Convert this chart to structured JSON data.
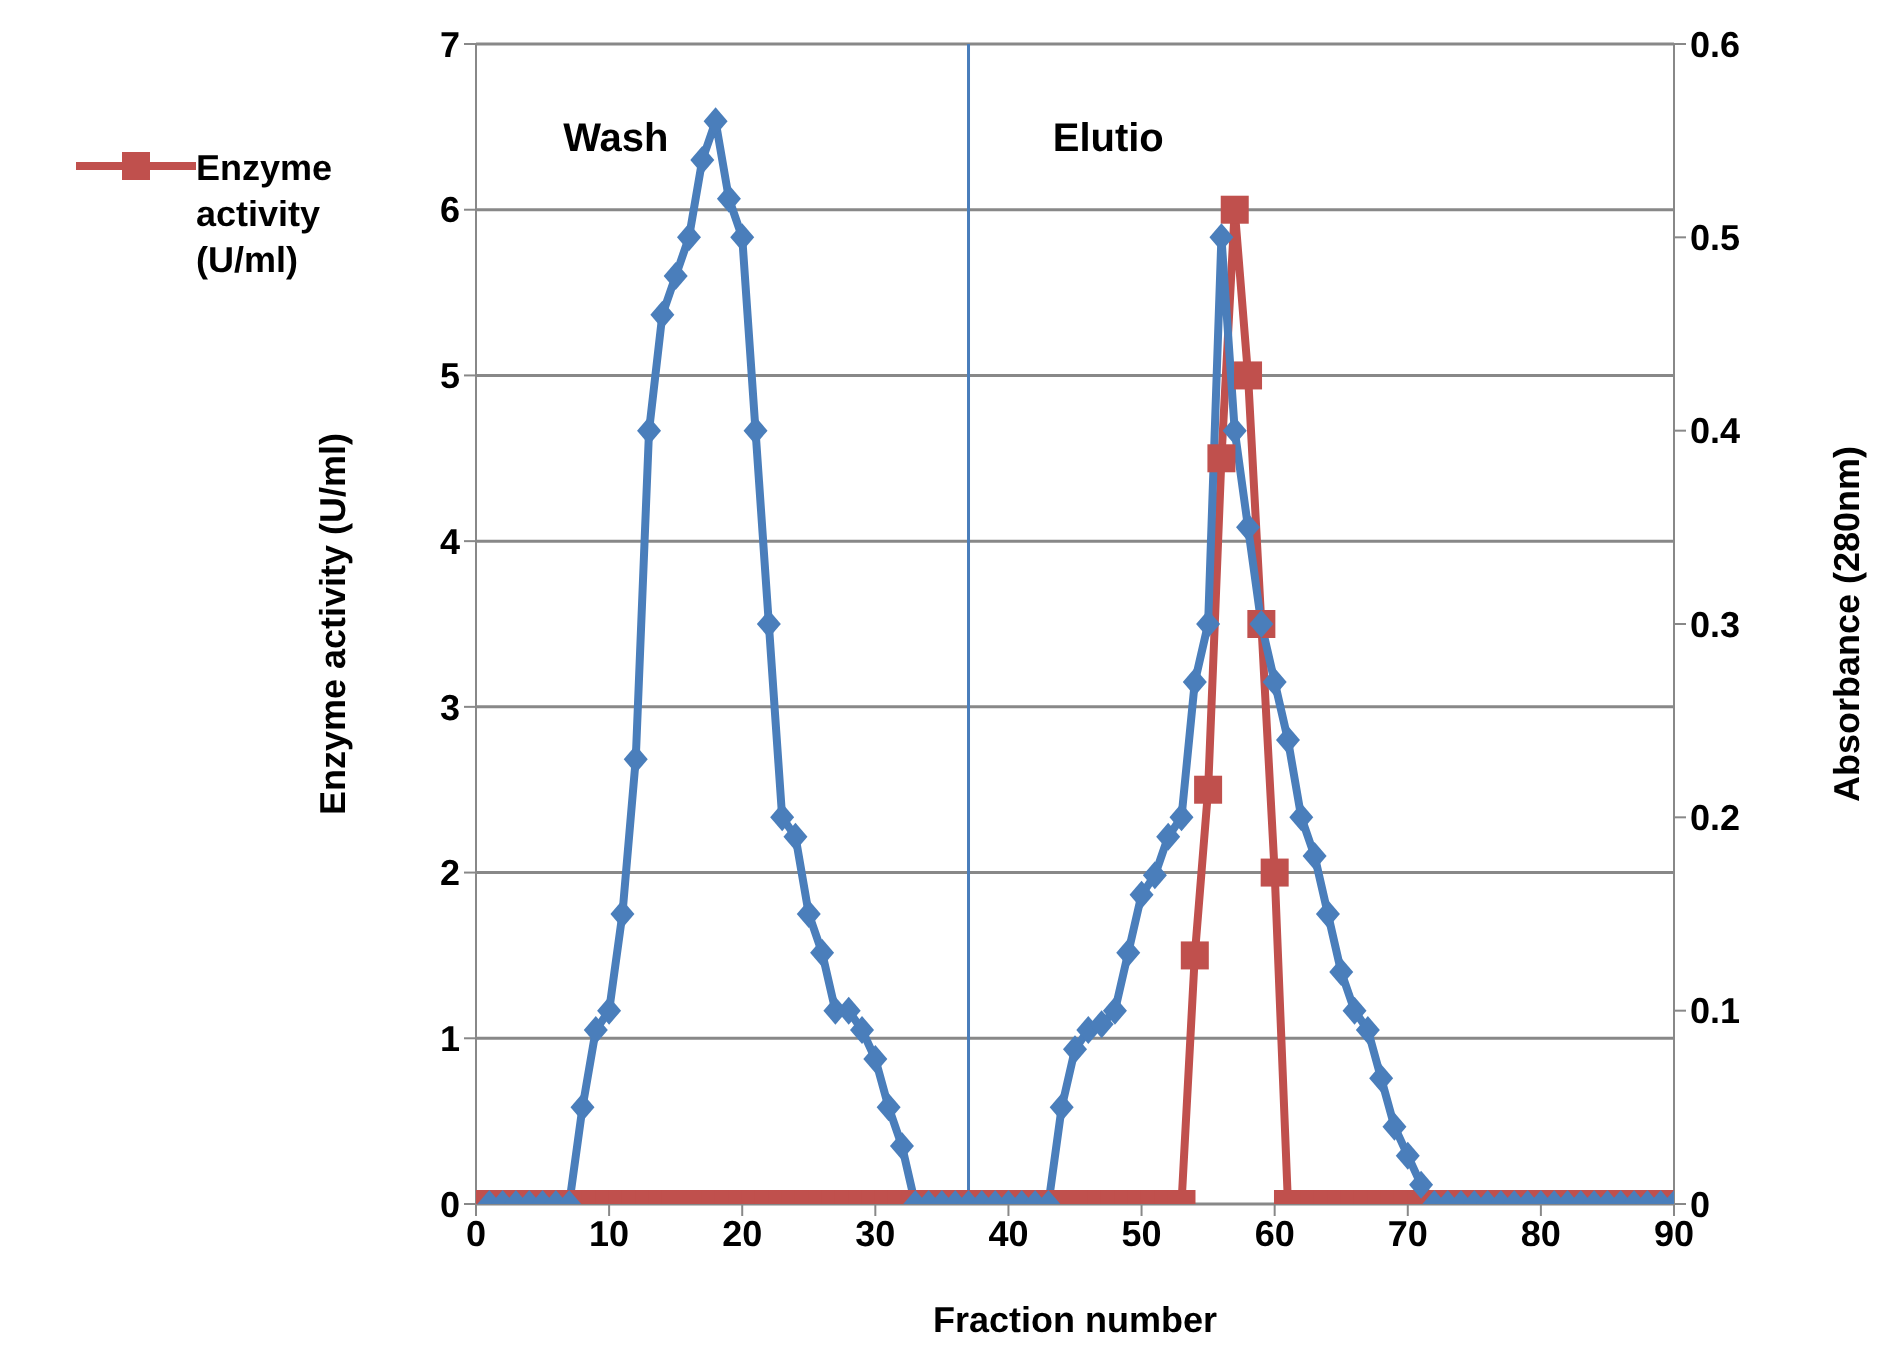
{
  "chart_data": {
    "type": "line",
    "xlabel": "Fraction number",
    "ylabel": "Enzyme activity (U/ml)",
    "y2label": "Absorbance (280nm)",
    "xlim": [
      0,
      90
    ],
    "xticks": [
      0,
      10,
      20,
      30,
      40,
      50,
      60,
      70,
      80,
      90
    ],
    "ylim": [
      0,
      7
    ],
    "yticks": [
      0,
      1,
      2,
      3,
      4,
      5,
      6,
      7
    ],
    "y2lim": [
      0,
      0.6
    ],
    "y2ticks": [
      0,
      0.1,
      0.2,
      0.3,
      0.4,
      0.5,
      0.6
    ],
    "grid": "y",
    "legend": "top left",
    "line_style": "solid",
    "annotations": [
      "Wash",
      "Elutio"
    ],
    "ref_lines": [
      {
        "axis": "x",
        "value": 37,
        "color": "#4a7ebb"
      }
    ],
    "series": [
      {
        "name": "Enzyme activity (U/ml)",
        "color": "#c0504d",
        "marker": "square",
        "x": [
          0,
          1,
          2,
          3,
          4,
          5,
          6,
          7,
          8,
          9,
          10,
          11,
          12,
          13,
          14,
          15,
          16,
          17,
          18,
          19,
          20,
          21,
          22,
          23,
          24,
          25,
          26,
          27,
          28,
          29,
          30,
          31,
          32,
          33,
          34,
          35,
          36,
          37,
          38,
          39,
          40,
          41,
          42,
          43,
          44,
          45,
          46,
          47,
          48,
          49,
          50,
          51,
          52,
          53,
          54,
          55,
          56,
          57,
          58,
          59,
          60,
          61,
          62,
          63,
          64,
          65,
          66,
          67,
          68,
          69,
          70,
          71,
          72,
          73,
          74,
          75,
          76,
          77,
          78,
          79,
          80,
          81,
          82,
          83,
          84,
          85,
          86,
          87,
          88,
          89,
          90
        ],
        "values": [
          0,
          0,
          0,
          0,
          0,
          0,
          0,
          0,
          0,
          0,
          0,
          0,
          0,
          0,
          0,
          0,
          0,
          0,
          0,
          0,
          0,
          0,
          0,
          0,
          0,
          0,
          0,
          0,
          0,
          0,
          0,
          0,
          0,
          0,
          0,
          0,
          0,
          0,
          0,
          0,
          0,
          0,
          0,
          0,
          0,
          0,
          0,
          0,
          0,
          0,
          0,
          0,
          0,
          0,
          1.5,
          2.5,
          4.5,
          6.0,
          5.0,
          3.5,
          2.0,
          0,
          0,
          0,
          0,
          0,
          0,
          0,
          0,
          0,
          0,
          0,
          0,
          0,
          0,
          0,
          0,
          0,
          0,
          0,
          0,
          0,
          0,
          0,
          0,
          0,
          0,
          0,
          0,
          0,
          0
        ]
      },
      {
        "color": "#4a7ebb",
        "marker": "diamond",
        "axis": "y2",
        "x": [
          1,
          2,
          3,
          4,
          5,
          6,
          7,
          8,
          9,
          10,
          11,
          12,
          13,
          14,
          15,
          16,
          17,
          18,
          19,
          20,
          21,
          22,
          23,
          24,
          25,
          26,
          27,
          28,
          29,
          30,
          31,
          32,
          33,
          34,
          35,
          36,
          37,
          38,
          39,
          40,
          41,
          42,
          43,
          44,
          45,
          46,
          47,
          48,
          49,
          50,
          51,
          52,
          53,
          54,
          55,
          56,
          57,
          58,
          59,
          60,
          61,
          62,
          63,
          64,
          65,
          66,
          67,
          68,
          69,
          70,
          71,
          72,
          73,
          74,
          75,
          76,
          77,
          78,
          79,
          80,
          81,
          82,
          83,
          84,
          85,
          86,
          87,
          88,
          89,
          90
        ],
        "values": [
          0,
          0,
          0,
          0,
          0,
          0,
          0,
          0.05,
          0.09,
          0.1,
          0.15,
          0.23,
          0.4,
          0.46,
          0.48,
          0.5,
          0.54,
          0.56,
          0.52,
          0.5,
          0.4,
          0.3,
          0.2,
          0.19,
          0.15,
          0.13,
          0.1,
          0.1,
          0.09,
          0.075,
          0.05,
          0.03,
          0,
          0,
          0,
          0,
          0,
          0,
          0,
          0,
          0,
          0,
          0,
          0.05,
          0.08,
          0.09,
          0.093,
          0.1,
          0.13,
          0.16,
          0.17,
          0.19,
          0.2,
          0.27,
          0.3,
          0.5,
          0.4,
          0.35,
          0.3,
          0.27,
          0.24,
          0.2,
          0.18,
          0.15,
          0.12,
          0.1,
          0.09,
          0.065,
          0.04,
          0.025,
          0.01,
          0,
          0,
          0,
          0,
          0,
          0,
          0,
          0,
          0,
          0,
          0,
          0,
          0,
          0,
          0,
          0,
          0,
          0,
          0
        ]
      }
    ]
  }
}
